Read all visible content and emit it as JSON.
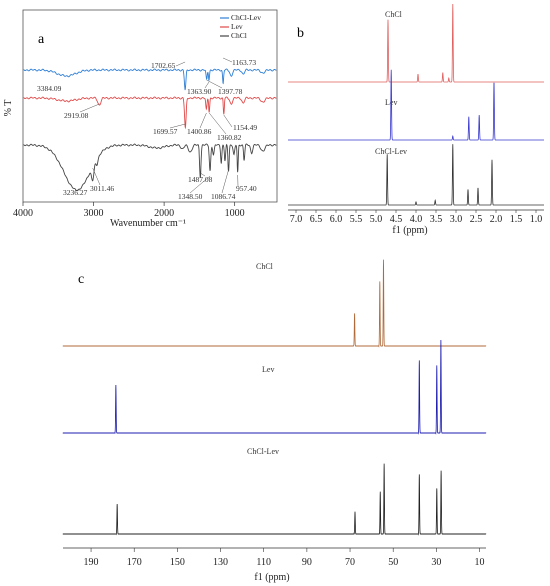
{
  "chart_data": [
    {
      "panel": "a",
      "type": "line",
      "xlabel": "Wavenumber cm⁻¹",
      "ylabel": "% T",
      "xlim": [
        4000,
        400
      ],
      "xticks": [
        4000,
        3000,
        2000,
        1000
      ],
      "grid": false,
      "legend_position": "top-right",
      "series": [
        {
          "name": "ChCl-Lev",
          "color": "#2e7fd6",
          "peaks": [
            "3384.09",
            "1702.65",
            "1363.90",
            "1397.78",
            "1163.73"
          ]
        },
        {
          "name": "Lev",
          "color": "#e04a4a",
          "peaks": [
            "2919.08",
            "1699.57",
            "1400.86",
            "1360.82",
            "1154.49"
          ]
        },
        {
          "name": "ChCl",
          "color": "#444444",
          "peaks": [
            "3236.27",
            "3011.46",
            "1487.08",
            "1348.50",
            "1086.74",
            "957.40"
          ]
        }
      ]
    },
    {
      "panel": "b",
      "type": "line",
      "xlabel": "f1 (ppm)",
      "xlim": [
        7.2,
        0.8
      ],
      "xticks": [
        "7.0",
        "6.5",
        "6.0",
        "5.5",
        "5.0",
        "4.5",
        "4.0",
        "3.5",
        "3.0",
        "2.5",
        "2.0",
        "1.5",
        "1.0"
      ],
      "series": [
        {
          "name": "ChCl",
          "color": "#e0605f",
          "peaks": [
            [
              4.7,
              0.8
            ],
            [
              3.95,
              0.1
            ],
            [
              3.33,
              0.12
            ],
            [
              3.18,
              0.05
            ],
            [
              3.08,
              1.0
            ]
          ]
        },
        {
          "name": "Lev",
          "color": "#3a3acf",
          "peaks": [
            [
              4.62,
              0.9
            ],
            [
              3.08,
              0.05
            ],
            [
              2.68,
              0.3
            ],
            [
              2.42,
              0.32
            ],
            [
              2.05,
              0.75
            ]
          ]
        },
        {
          "name": "ChCl-Lev",
          "color": "#333333",
          "peaks": [
            [
              4.72,
              0.65
            ],
            [
              4.0,
              0.04
            ],
            [
              3.52,
              0.06
            ],
            [
              3.08,
              0.78
            ],
            [
              2.7,
              0.2
            ],
            [
              2.45,
              0.22
            ],
            [
              2.1,
              0.58
            ]
          ]
        }
      ]
    },
    {
      "panel": "c",
      "type": "line",
      "xlabel": "f1 (ppm)",
      "xlim": [
        203,
        7
      ],
      "xticks": [
        "190",
        "170",
        "150",
        "130",
        "110",
        "90",
        "70",
        "50",
        "30",
        "10"
      ],
      "series": [
        {
          "name": "ChCl",
          "color": "#b06a3a",
          "peaks": [
            [
              67.9,
              0.33
            ],
            [
              56.2,
              0.65
            ],
            [
              54.5,
              0.86
            ]
          ]
        },
        {
          "name": "Lev",
          "color": "#1d1db0",
          "peaks": [
            [
              178.5,
              0.48
            ],
            [
              37.9,
              0.73
            ],
            [
              29.8,
              0.68
            ],
            [
              27.9,
              0.93
            ]
          ]
        },
        {
          "name": "ChCl-Lev",
          "color": "#222222",
          "peaks": [
            [
              177.9,
              0.3
            ],
            [
              67.7,
              0.22
            ],
            [
              56.0,
              0.42
            ],
            [
              54.2,
              0.7
            ],
            [
              37.9,
              0.6
            ],
            [
              29.8,
              0.46
            ],
            [
              27.8,
              0.63
            ]
          ]
        }
      ]
    }
  ]
}
